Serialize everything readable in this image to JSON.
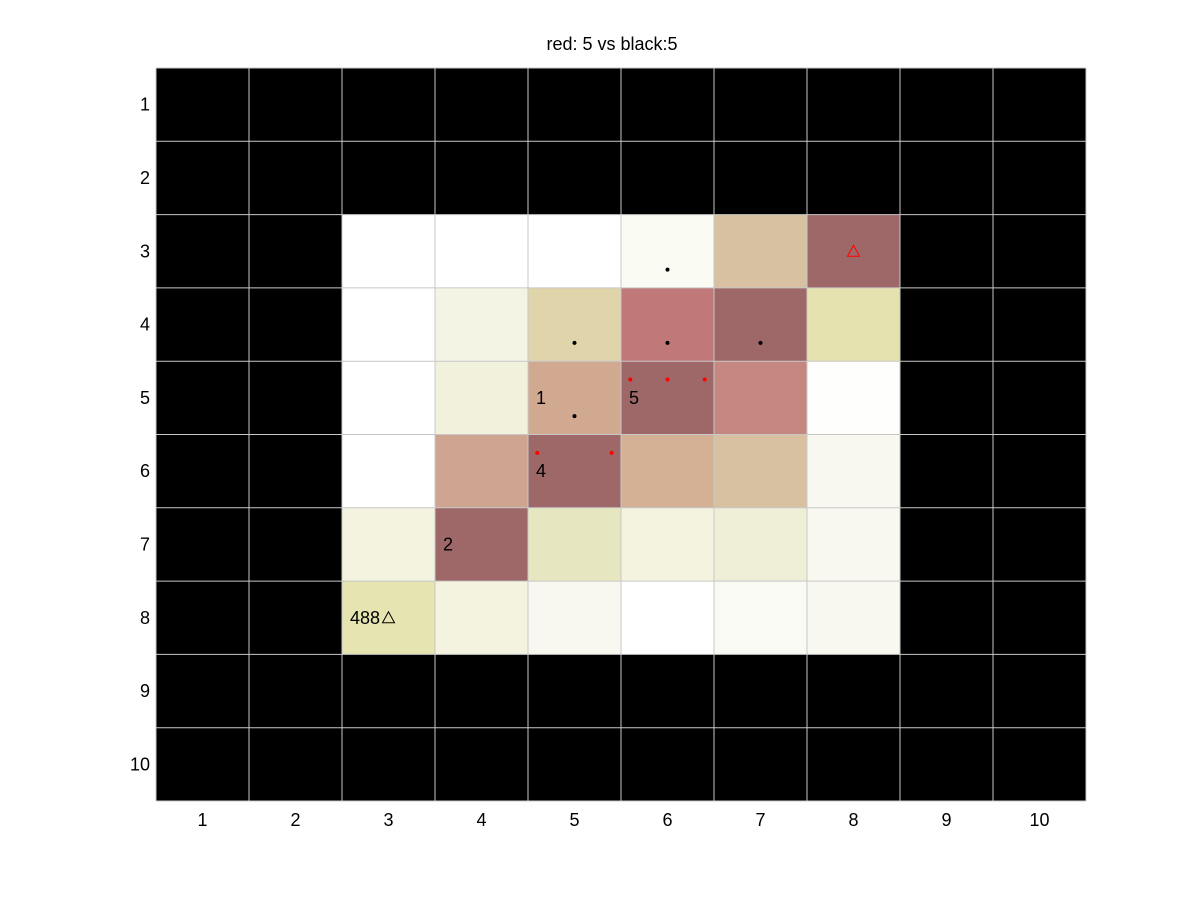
{
  "title": "red: 5 vs black:5",
  "board": {
    "rows": 10,
    "cols": 10,
    "x_ticks": [
      "1",
      "2",
      "3",
      "4",
      "5",
      "6",
      "7",
      "8",
      "9",
      "10"
    ],
    "y_ticks": [
      "1",
      "2",
      "3",
      "4",
      "5",
      "6",
      "7",
      "8",
      "9",
      "10"
    ],
    "default_color": "#000000",
    "grid_color": "#c8c8c8",
    "cells": [
      {
        "row": 3,
        "col": 3,
        "color": "#ffffff"
      },
      {
        "row": 3,
        "col": 4,
        "color": "#ffffff"
      },
      {
        "row": 3,
        "col": 5,
        "color": "#ffffff"
      },
      {
        "row": 3,
        "col": 6,
        "color": "#fafbf3"
      },
      {
        "row": 3,
        "col": 7,
        "color": "#d8c1a0"
      },
      {
        "row": 3,
        "col": 8,
        "color": "#9e6768"
      },
      {
        "row": 4,
        "col": 3,
        "color": "#ffffff"
      },
      {
        "row": 4,
        "col": 4,
        "color": "#f4f4e4"
      },
      {
        "row": 4,
        "col": 5,
        "color": "#e0d4aa"
      },
      {
        "row": 4,
        "col": 6,
        "color": "#c07878"
      },
      {
        "row": 4,
        "col": 7,
        "color": "#9e6768"
      },
      {
        "row": 4,
        "col": 8,
        "color": "#e5e2b0"
      },
      {
        "row": 5,
        "col": 3,
        "color": "#ffffff"
      },
      {
        "row": 5,
        "col": 4,
        "color": "#f2f2dc"
      },
      {
        "row": 5,
        "col": 5,
        "color": "#d1a890"
      },
      {
        "row": 5,
        "col": 6,
        "color": "#9e6768"
      },
      {
        "row": 5,
        "col": 7,
        "color": "#c48880"
      },
      {
        "row": 5,
        "col": 8,
        "color": "#fefefc"
      },
      {
        "row": 6,
        "col": 3,
        "color": "#ffffff"
      },
      {
        "row": 6,
        "col": 4,
        "color": "#cda590"
      },
      {
        "row": 6,
        "col": 5,
        "color": "#9e6768"
      },
      {
        "row": 6,
        "col": 6,
        "color": "#d4b094"
      },
      {
        "row": 6,
        "col": 7,
        "color": "#d8c1a0"
      },
      {
        "row": 6,
        "col": 8,
        "color": "#f8f8f0"
      },
      {
        "row": 7,
        "col": 3,
        "color": "#f3f3e0"
      },
      {
        "row": 7,
        "col": 4,
        "color": "#9e6768"
      },
      {
        "row": 7,
        "col": 5,
        "color": "#e6e6c0"
      },
      {
        "row": 7,
        "col": 6,
        "color": "#f3f3e0"
      },
      {
        "row": 7,
        "col": 7,
        "color": "#efefd8"
      },
      {
        "row": 7,
        "col": 8,
        "color": "#f8f8f0"
      },
      {
        "row": 8,
        "col": 3,
        "color": "#e6e4b0"
      },
      {
        "row": 8,
        "col": 4,
        "color": "#f3f3e0"
      },
      {
        "row": 8,
        "col": 5,
        "color": "#f8f8f0"
      },
      {
        "row": 8,
        "col": 6,
        "color": "#ffffff"
      },
      {
        "row": 8,
        "col": 7,
        "color": "#fafaf4"
      },
      {
        "row": 8,
        "col": 8,
        "color": "#f8f8f0"
      }
    ],
    "labels": [
      {
        "row": 5,
        "col": 5,
        "text": "1"
      },
      {
        "row": 5,
        "col": 6,
        "text": "5"
      },
      {
        "row": 6,
        "col": 5,
        "text": "4"
      },
      {
        "row": 7,
        "col": 4,
        "text": "2"
      },
      {
        "row": 8,
        "col": 3,
        "text": "488"
      }
    ],
    "markers": [
      {
        "row": 3.25,
        "col": 6.0,
        "color": "#000000"
      },
      {
        "row": 4.25,
        "col": 5.0,
        "color": "#000000"
      },
      {
        "row": 4.25,
        "col": 6.0,
        "color": "#000000"
      },
      {
        "row": 4.25,
        "col": 7.0,
        "color": "#000000"
      },
      {
        "row": 5.25,
        "col": 5.0,
        "color": "#000000"
      },
      {
        "row": 4.75,
        "col": 5.6,
        "color": "#ff0000"
      },
      {
        "row": 4.75,
        "col": 6.0,
        "color": "#ff0000"
      },
      {
        "row": 4.75,
        "col": 6.4,
        "color": "#ff0000"
      },
      {
        "row": 5.75,
        "col": 4.6,
        "color": "#ff0000"
      },
      {
        "row": 5.75,
        "col": 5.4,
        "color": "#ff0000"
      }
    ],
    "triangles": [
      {
        "row": 3,
        "col": 8,
        "color": "#ff0000"
      },
      {
        "row": 8,
        "col": 3,
        "color": "#000000"
      }
    ]
  }
}
